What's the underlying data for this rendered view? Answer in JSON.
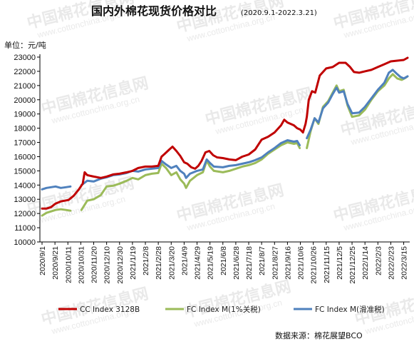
{
  "title": "国内外棉花现货价格对比",
  "subtitle": "(2020.9.1-2022.3.21)",
  "source": "数据来源：棉花展望BCO",
  "watermark": {
    "cn": "中国棉花信息网",
    "url": "www.cottonchina.org.cn"
  },
  "colors": {
    "cc_index": "#c00000",
    "fc_1pct": "#9bbb59",
    "fc_sliding": "#4f81bd",
    "axis": "#000000"
  },
  "chart_data": {
    "type": "line",
    "title": "国内外棉花现货价格对比",
    "subtitle": "(2020.9.1-2022.3.21)",
    "ylabel": "单位：元/吨",
    "ylim": [
      10000,
      23000
    ],
    "yticks": [
      10000,
      11000,
      12000,
      13000,
      14000,
      15000,
      16000,
      17000,
      18000,
      19000,
      20000,
      21000,
      22000,
      23000
    ],
    "x_range": [
      "2020-09-01",
      "2022-03-21"
    ],
    "x_tick_labels": [
      "2020/9/1",
      "2020/9/21",
      "2020/10/11",
      "2020/10/31",
      "2020/11/20",
      "2020/12/10",
      "2020/12/30",
      "2021/1/19",
      "2021/2/8",
      "2021/2/28",
      "2021/3/20",
      "2021/4/9",
      "2021/4/29",
      "2021/5/19",
      "2021/6/8",
      "2021/6/28",
      "2021/7/18",
      "2021/8/7",
      "2021/8/27",
      "2021/9/16",
      "2021/10/6",
      "2021/10/26",
      "2021/11/15",
      "2021/12/5",
      "2021/12/25",
      "2022/1/14",
      "2022/2/3",
      "2022/2/23",
      "2022/3/15"
    ],
    "grid": false,
    "legend_position": "bottom",
    "series": [
      {
        "name": "CC Index 3128B",
        "color": "#c00000",
        "points": [
          [
            "2020-09-01",
            12350
          ],
          [
            "2020-09-08",
            12350
          ],
          [
            "2020-09-15",
            12450
          ],
          [
            "2020-09-22",
            12700
          ],
          [
            "2020-09-30",
            12850
          ],
          [
            "2020-10-12",
            12950
          ],
          [
            "2020-10-20",
            13250
          ],
          [
            "2020-10-28",
            13700
          ],
          [
            "2020-11-03",
            14100
          ],
          [
            "2020-11-06",
            14900
          ],
          [
            "2020-11-10",
            14700
          ],
          [
            "2020-11-20",
            14600
          ],
          [
            "2020-12-01",
            14500
          ],
          [
            "2020-12-10",
            14600
          ],
          [
            "2020-12-20",
            14750
          ],
          [
            "2020-12-30",
            14800
          ],
          [
            "2021-01-10",
            14900
          ],
          [
            "2021-01-19",
            15000
          ],
          [
            "2021-01-28",
            15200
          ],
          [
            "2021-02-08",
            15300
          ],
          [
            "2021-02-18",
            15300
          ],
          [
            "2021-02-28",
            15350
          ],
          [
            "2021-03-05",
            16000
          ],
          [
            "2021-03-10",
            16200
          ],
          [
            "2021-03-17",
            16500
          ],
          [
            "2021-03-22",
            16700
          ],
          [
            "2021-03-28",
            16400
          ],
          [
            "2021-04-03",
            16050
          ],
          [
            "2021-04-09",
            15600
          ],
          [
            "2021-04-14",
            15500
          ],
          [
            "2021-04-20",
            15250
          ],
          [
            "2021-04-26",
            15150
          ],
          [
            "2021-05-01",
            15350
          ],
          [
            "2021-05-06",
            15700
          ],
          [
            "2021-05-12",
            16300
          ],
          [
            "2021-05-18",
            16400
          ],
          [
            "2021-05-24",
            16100
          ],
          [
            "2021-05-30",
            15950
          ],
          [
            "2021-06-08",
            15900
          ],
          [
            "2021-06-18",
            15800
          ],
          [
            "2021-06-28",
            15750
          ],
          [
            "2021-07-08",
            16000
          ],
          [
            "2021-07-18",
            16150
          ],
          [
            "2021-07-28",
            16500
          ],
          [
            "2021-08-07",
            17200
          ],
          [
            "2021-08-17",
            17400
          ],
          [
            "2021-08-27",
            17700
          ],
          [
            "2021-09-06",
            18200
          ],
          [
            "2021-09-11",
            18600
          ],
          [
            "2021-09-16",
            18400
          ],
          [
            "2021-09-26",
            18200
          ],
          [
            "2021-10-01",
            18000
          ],
          [
            "2021-10-06",
            17900
          ],
          [
            "2021-10-10",
            17700
          ],
          [
            "2021-10-14",
            18300
          ],
          [
            "2021-10-16",
            18800
          ],
          [
            "2021-10-19",
            20000
          ],
          [
            "2021-10-24",
            20600
          ],
          [
            "2021-10-29",
            20500
          ],
          [
            "2021-11-05",
            21700
          ],
          [
            "2021-11-15",
            22200
          ],
          [
            "2021-11-25",
            22300
          ],
          [
            "2021-12-05",
            22600
          ],
          [
            "2021-12-15",
            22600
          ],
          [
            "2021-12-22",
            22300
          ],
          [
            "2021-12-28",
            21950
          ],
          [
            "2022-01-05",
            21900
          ],
          [
            "2022-01-14",
            22000
          ],
          [
            "2022-01-24",
            22100
          ],
          [
            "2022-02-03",
            22300
          ],
          [
            "2022-02-13",
            22500
          ],
          [
            "2022-02-23",
            22700
          ],
          [
            "2022-03-05",
            22750
          ],
          [
            "2022-03-15",
            22800
          ],
          [
            "2022-03-21",
            22950
          ]
        ]
      },
      {
        "name": "FC Index M(1%关税)",
        "color": "#9bbb59",
        "points": [
          [
            "2020-09-01",
            11850
          ],
          [
            "2020-09-08",
            12050
          ],
          [
            "2020-09-15",
            12150
          ],
          [
            "2020-09-22",
            12250
          ],
          [
            "2020-09-30",
            12300
          ],
          [
            "2020-10-08",
            12250
          ],
          [
            "2020-10-15",
            12200
          ],
          [
            "2020-10-22",
            null
          ],
          [
            "2020-11-01",
            12250
          ],
          [
            "2020-11-10",
            12900
          ],
          [
            "2020-11-20",
            13000
          ],
          [
            "2020-12-01",
            13300
          ],
          [
            "2020-12-10",
            13900
          ],
          [
            "2020-12-20",
            13950
          ],
          [
            "2020-12-30",
            14100
          ],
          [
            "2021-01-10",
            14300
          ],
          [
            "2021-01-19",
            14500
          ],
          [
            "2021-01-28",
            14400
          ],
          [
            "2021-02-08",
            14700
          ],
          [
            "2021-02-18",
            14800
          ],
          [
            "2021-02-28",
            14850
          ],
          [
            "2021-03-05",
            15500
          ],
          [
            "2021-03-12",
            15200
          ],
          [
            "2021-03-20",
            14700
          ],
          [
            "2021-03-28",
            14900
          ],
          [
            "2021-04-03",
            14400
          ],
          [
            "2021-04-09",
            14100
          ],
          [
            "2021-04-12",
            13800
          ],
          [
            "2021-04-18",
            14300
          ],
          [
            "2021-04-29",
            14700
          ],
          [
            "2021-05-08",
            14900
          ],
          [
            "2021-05-14",
            15700
          ],
          [
            "2021-05-19",
            15300
          ],
          [
            "2021-05-25",
            15000
          ],
          [
            "2021-06-08",
            14900
          ],
          [
            "2021-06-18",
            15000
          ],
          [
            "2021-06-28",
            15150
          ],
          [
            "2021-07-08",
            15300
          ],
          [
            "2021-07-18",
            15400
          ],
          [
            "2021-07-28",
            15550
          ],
          [
            "2021-08-07",
            15800
          ],
          [
            "2021-08-17",
            16200
          ],
          [
            "2021-08-27",
            16500
          ],
          [
            "2021-09-06",
            16800
          ],
          [
            "2021-09-16",
            17000
          ],
          [
            "2021-09-26",
            16900
          ],
          [
            "2021-10-01",
            16950
          ],
          [
            "2021-10-05",
            16600
          ],
          [
            "2021-10-06",
            null
          ],
          [
            "2021-10-16",
            16600
          ],
          [
            "2021-10-22",
            17800
          ],
          [
            "2021-10-28",
            18700
          ],
          [
            "2021-11-03",
            18300
          ],
          [
            "2021-11-10",
            19500
          ],
          [
            "2021-11-18",
            19900
          ],
          [
            "2021-11-25",
            20500
          ],
          [
            "2021-12-01",
            21000
          ],
          [
            "2021-12-05",
            20600
          ],
          [
            "2021-12-12",
            20700
          ],
          [
            "2021-12-18",
            19600
          ],
          [
            "2021-12-25",
            18800
          ],
          [
            "2022-01-05",
            18900
          ],
          [
            "2022-01-14",
            19300
          ],
          [
            "2022-01-24",
            20000
          ],
          [
            "2022-02-03",
            20600
          ],
          [
            "2022-02-13",
            21000
          ],
          [
            "2022-02-20",
            21500
          ],
          [
            "2022-02-26",
            21800
          ],
          [
            "2022-03-05",
            21500
          ],
          [
            "2022-03-12",
            21400
          ],
          [
            "2022-03-18",
            21550
          ],
          [
            "2022-03-21",
            21650
          ]
        ]
      },
      {
        "name": "FC Index M(滑准税)",
        "color": "#4f81bd",
        "points": [
          [
            "2020-09-01",
            13700
          ],
          [
            "2020-09-08",
            13800
          ],
          [
            "2020-09-15",
            13850
          ],
          [
            "2020-09-22",
            13900
          ],
          [
            "2020-09-30",
            13800
          ],
          [
            "2020-10-08",
            13850
          ],
          [
            "2020-10-15",
            13900
          ],
          [
            "2020-10-22",
            null
          ],
          [
            "2020-11-01",
            14000
          ],
          [
            "2020-11-10",
            14300
          ],
          [
            "2020-11-20",
            14250
          ],
          [
            "2020-12-01",
            14450
          ],
          [
            "2020-12-10",
            14550
          ],
          [
            "2020-12-20",
            14700
          ],
          [
            "2020-12-30",
            14750
          ],
          [
            "2021-01-10",
            14850
          ],
          [
            "2021-01-19",
            15000
          ],
          [
            "2021-01-28",
            14950
          ],
          [
            "2021-02-08",
            15100
          ],
          [
            "2021-02-18",
            15150
          ],
          [
            "2021-02-28",
            15200
          ],
          [
            "2021-03-05",
            15700
          ],
          [
            "2021-03-12",
            15450
          ],
          [
            "2021-03-20",
            15200
          ],
          [
            "2021-03-28",
            15350
          ],
          [
            "2021-04-03",
            15000
          ],
          [
            "2021-04-09",
            14800
          ],
          [
            "2021-04-12",
            14500
          ],
          [
            "2021-04-18",
            14800
          ],
          [
            "2021-04-29",
            15000
          ],
          [
            "2021-05-08",
            15100
          ],
          [
            "2021-05-14",
            15800
          ],
          [
            "2021-05-19",
            15550
          ],
          [
            "2021-05-25",
            15300
          ],
          [
            "2021-06-08",
            15250
          ],
          [
            "2021-06-18",
            15350
          ],
          [
            "2021-06-28",
            15400
          ],
          [
            "2021-07-08",
            15500
          ],
          [
            "2021-07-18",
            15600
          ],
          [
            "2021-07-28",
            15750
          ],
          [
            "2021-08-07",
            15950
          ],
          [
            "2021-08-17",
            16300
          ],
          [
            "2021-08-27",
            16600
          ],
          [
            "2021-09-06",
            16950
          ],
          [
            "2021-09-16",
            17150
          ],
          [
            "2021-09-26",
            17050
          ],
          [
            "2021-10-01",
            17100
          ],
          [
            "2021-10-05",
            16800
          ],
          [
            "2021-10-06",
            null
          ],
          [
            "2021-10-16",
            17300
          ],
          [
            "2021-10-22",
            17900
          ],
          [
            "2021-10-28",
            18700
          ],
          [
            "2021-11-03",
            18400
          ],
          [
            "2021-11-10",
            19400
          ],
          [
            "2021-11-18",
            19800
          ],
          [
            "2021-11-25",
            20400
          ],
          [
            "2021-12-01",
            20850
          ],
          [
            "2021-12-05",
            20500
          ],
          [
            "2021-12-12",
            20600
          ],
          [
            "2021-12-18",
            19700
          ],
          [
            "2021-12-25",
            19050
          ],
          [
            "2022-01-05",
            19100
          ],
          [
            "2022-01-14",
            19500
          ],
          [
            "2022-01-24",
            20100
          ],
          [
            "2022-02-03",
            20700
          ],
          [
            "2022-02-13",
            21200
          ],
          [
            "2022-02-20",
            21900
          ],
          [
            "2022-02-26",
            22100
          ],
          [
            "2022-03-05",
            21800
          ],
          [
            "2022-03-10",
            21600
          ],
          [
            "2022-03-15",
            21500
          ],
          [
            "2022-03-21",
            21650
          ]
        ]
      }
    ]
  }
}
